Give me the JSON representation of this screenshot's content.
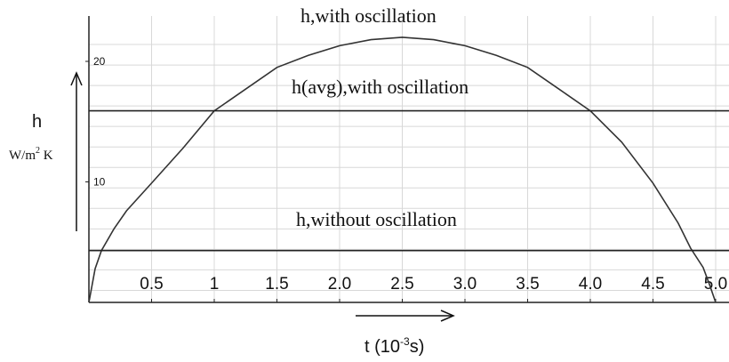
{
  "chart_data": {
    "type": "line",
    "xlabel": "t (10",
    "xlabel_exp": "-3",
    "xlabel_tail": "s)",
    "ylabel": "h",
    "ylabel_unit": "W/m",
    "ylabel_unit_exp": "2",
    "ylabel_unit_tail": " K",
    "x_ticks": [
      "0.5",
      "1",
      "1.5",
      "2.0",
      "2.5",
      "3.0",
      "3.5",
      "4.0",
      "4.5",
      "5.0"
    ],
    "x_tick_values": [
      0.5,
      1,
      1.5,
      2.0,
      2.5,
      3.0,
      3.5,
      4.0,
      4.5,
      5.0
    ],
    "y_ticks": [
      "20",
      "10"
    ],
    "y_tick_values": [
      20,
      10
    ],
    "xlim": [
      0,
      5.1
    ],
    "ylim": [
      0,
      23
    ],
    "grid": true,
    "series": [
      {
        "name": "h,with oscillation",
        "x": [
          0,
          0.05,
          0.1,
          0.2,
          0.3,
          0.5,
          0.75,
          1.0,
          1.25,
          1.5,
          1.75,
          2.0,
          2.25,
          2.5,
          2.75,
          3.0,
          3.25,
          3.5,
          3.75,
          4.0,
          4.25,
          4.5,
          4.7,
          4.8,
          4.9,
          4.95,
          5.0
        ],
        "y": [
          0,
          2.8,
          4.3,
          6.1,
          7.6,
          9.9,
          12.8,
          15.9,
          17.7,
          19.5,
          20.5,
          21.3,
          21.8,
          22.0,
          21.8,
          21.3,
          20.5,
          19.5,
          17.7,
          15.9,
          13.3,
          9.9,
          6.6,
          4.5,
          2.9,
          1.5,
          0
        ]
      },
      {
        "name": "h(avg),with oscillation",
        "y": 15.9
      },
      {
        "name": "h,without oscillation",
        "y": 4.3
      }
    ]
  }
}
